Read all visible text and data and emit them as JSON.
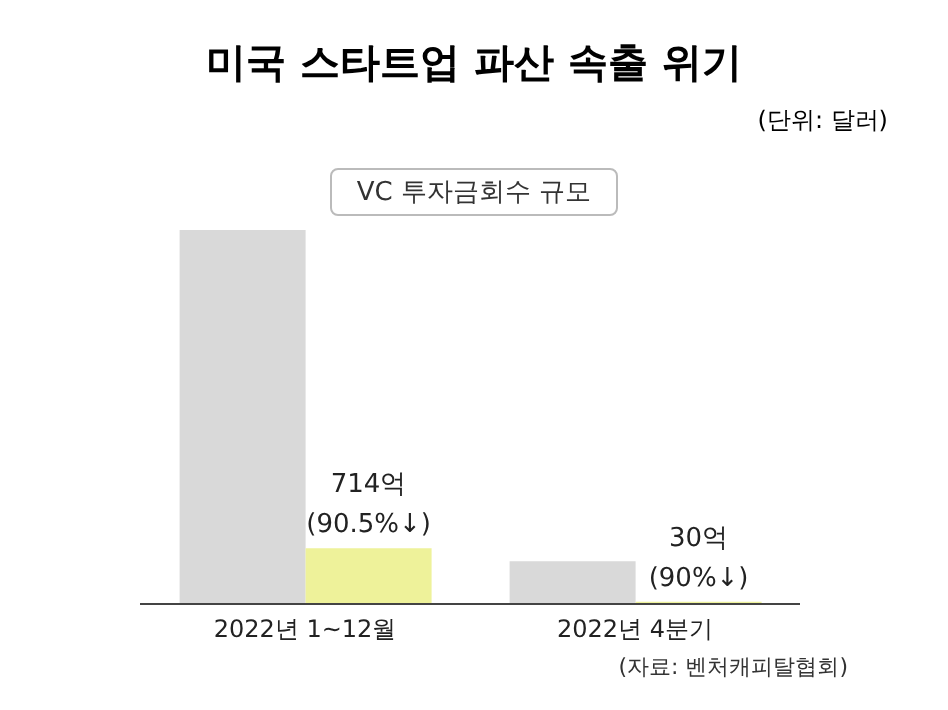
{
  "chart_data": {
    "type": "bar",
    "title": "미국 스타트업 파산 속출 위기",
    "subtitle": "VC 투자금회수 규모",
    "annotations": [
      "(단위: 달러)",
      "(자료: 벤처캐피탈협회)"
    ],
    "categories": [
      "2022년 1~12월",
      "2022년 4분기"
    ],
    "ylim": [
      0,
      4800
    ],
    "series": [
      {
        "color": "#d9d9d9",
        "values": [
          4800,
          550
        ]
      },
      {
        "color": "#eef29a",
        "values": [
          714,
          30
        ],
        "value_labels": [
          "714억\n(90.5%↓)",
          "30억\n(90%↓)"
        ]
      }
    ],
    "grid": false,
    "legend": false
  }
}
